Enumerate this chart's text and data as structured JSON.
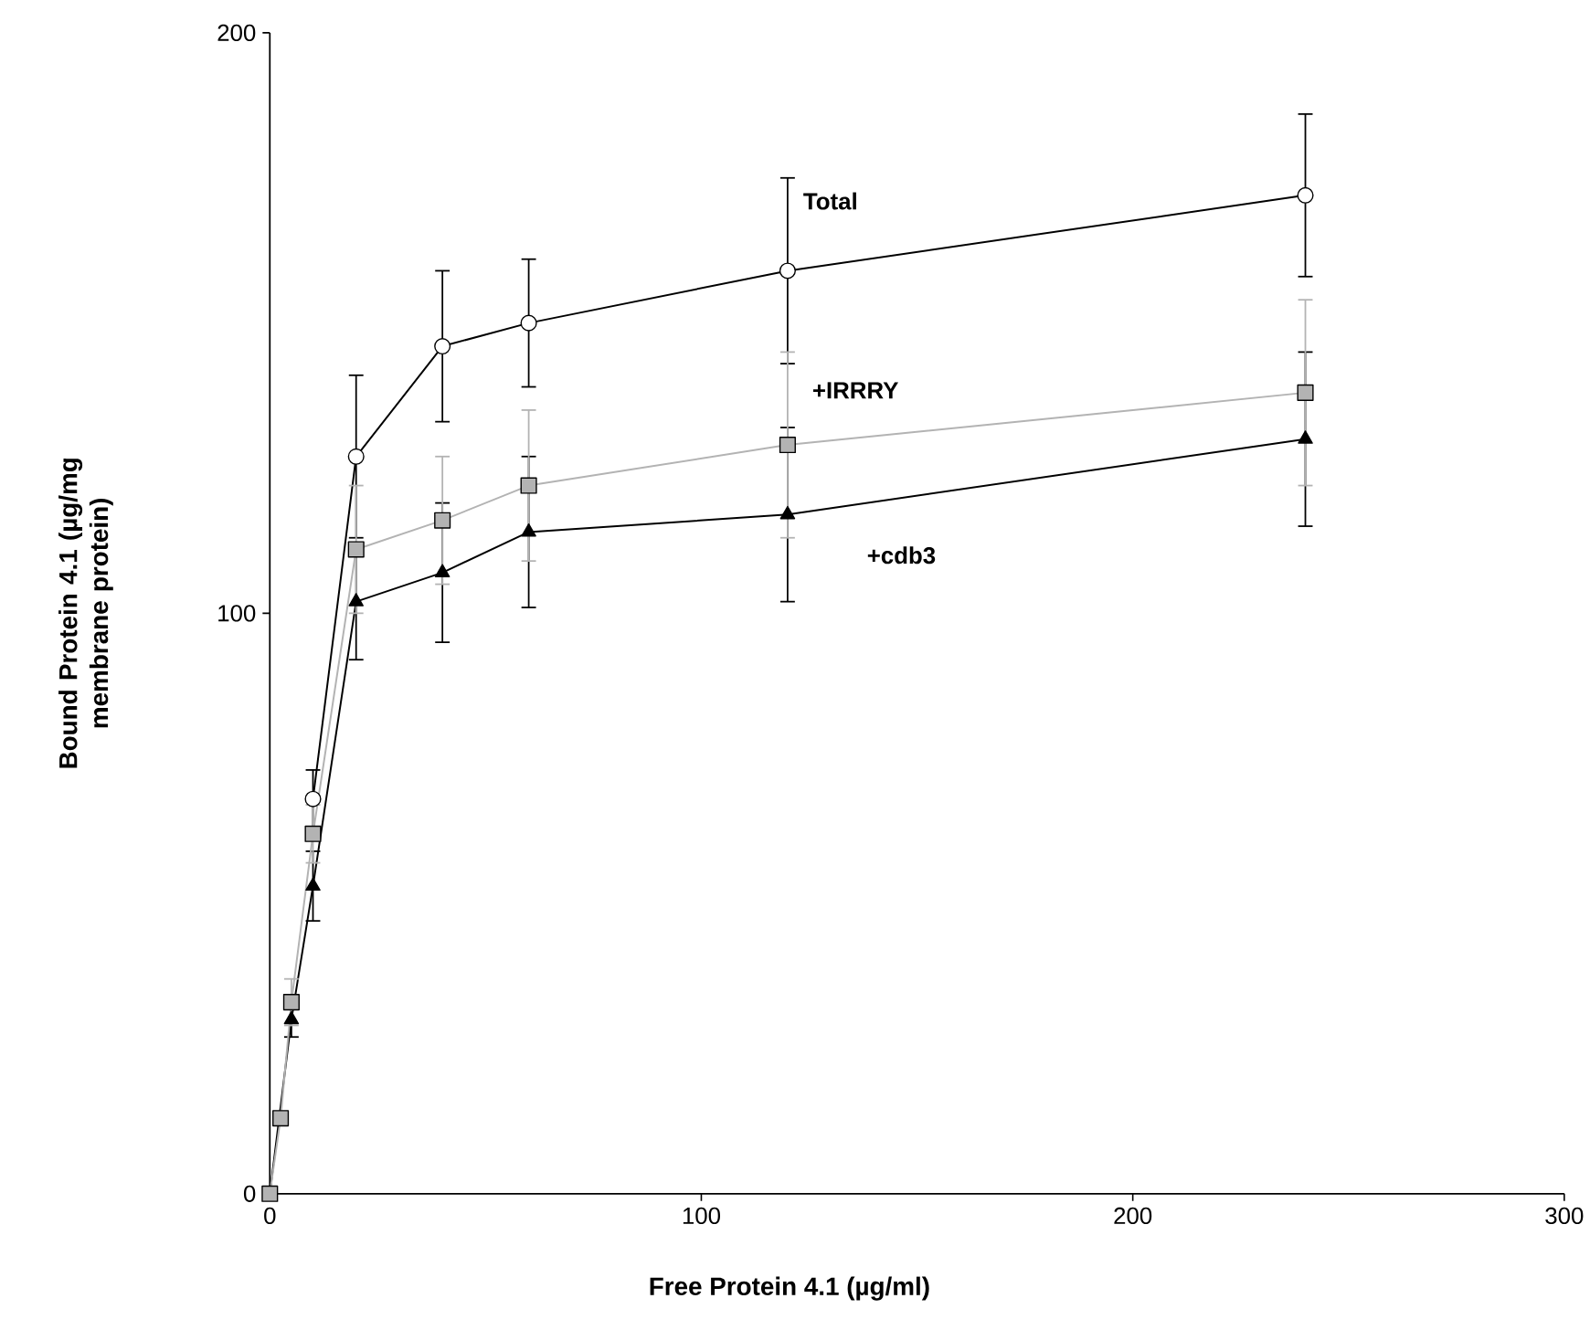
{
  "chart_data": {
    "type": "line",
    "xlabel": "Free Protein 4.1 (µg/ml)",
    "ylabel": "Bound Protein 4.1 (µg/mg membrane protein)",
    "xlim": [
      0,
      300
    ],
    "ylim": [
      0,
      200
    ],
    "xticks": [
      0,
      100,
      200,
      300
    ],
    "yticks": [
      0,
      100,
      200
    ],
    "grid": false,
    "series": [
      {
        "name": "Total",
        "color": "#000000",
        "marker": "circle",
        "x": [
          10,
          20,
          40,
          60,
          120,
          240
        ],
        "values": [
          68,
          127,
          146,
          150,
          159,
          172
        ],
        "errors": [
          5,
          14,
          13,
          11,
          16,
          14
        ]
      },
      {
        "name": "+IRRRY",
        "color": "#b3b3b3",
        "marker": "square",
        "x": [
          0,
          2.5,
          5,
          10,
          20,
          40,
          60,
          120,
          240
        ],
        "values": [
          0,
          13,
          33,
          62,
          111,
          116,
          122,
          129,
          138
        ],
        "errors": [
          null,
          null,
          4,
          5,
          11,
          11,
          13,
          16,
          16
        ]
      },
      {
        "name": "+cdb3",
        "color": "#000000",
        "marker": "triangle",
        "x": [
          0,
          5,
          10,
          20,
          40,
          60,
          120,
          240
        ],
        "values": [
          0,
          30,
          53,
          102,
          107,
          114,
          117,
          130
        ],
        "errors": [
          null,
          3,
          6,
          10,
          12,
          13,
          15,
          15
        ]
      }
    ]
  }
}
